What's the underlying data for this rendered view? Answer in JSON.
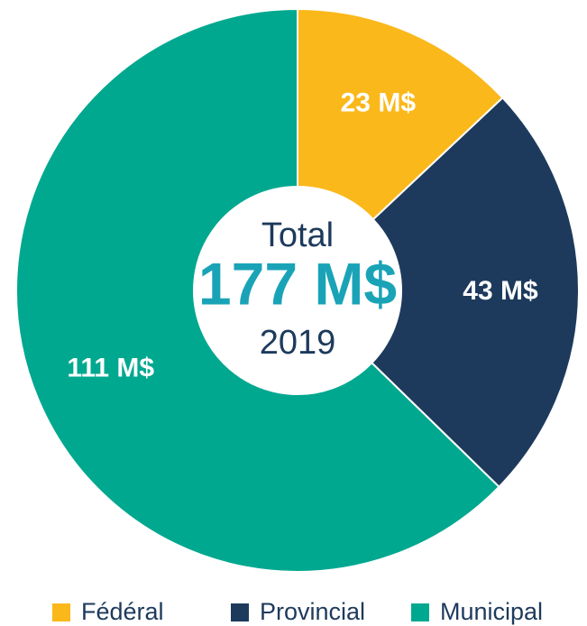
{
  "chart_data": {
    "type": "donut",
    "categories": [
      "Fédéral",
      "Provincial",
      "Municipal"
    ],
    "values": [
      23,
      43,
      111
    ],
    "value_labels": [
      "23 M$",
      "43 M$",
      "111 M$"
    ],
    "colors": [
      "#fbb81a",
      "#1d3a5c",
      "#00a88f"
    ],
    "center_title": "Total",
    "center_value": "177 M$",
    "center_subtitle": "2019",
    "legend": "bottom"
  }
}
